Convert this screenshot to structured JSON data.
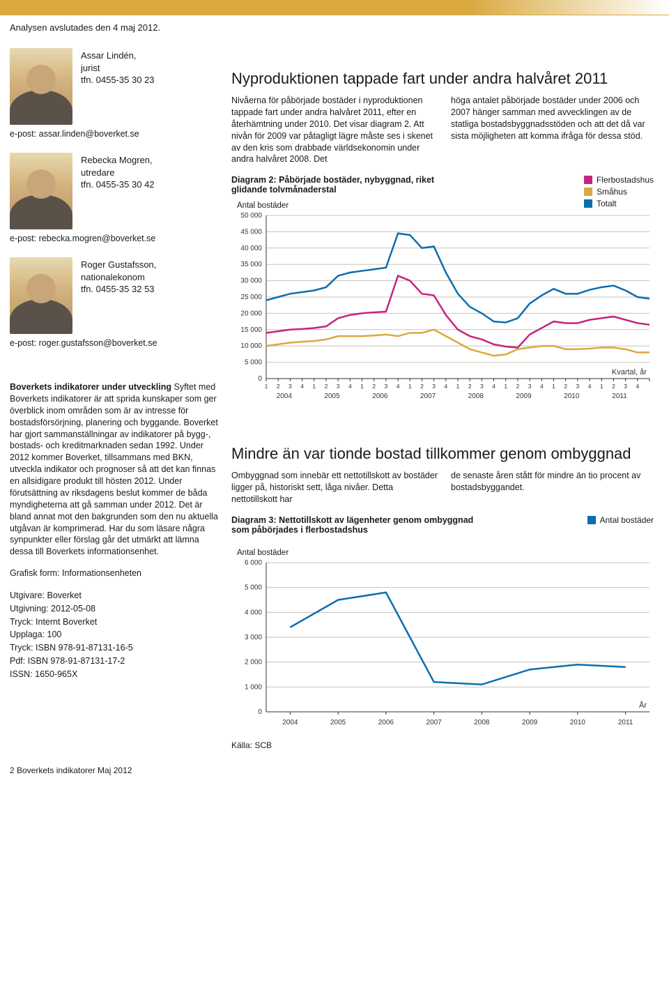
{
  "analysis_date": "Analysen avslutades den 4 maj 2012.",
  "persons": [
    {
      "name": "Assar Lindén,",
      "role": "jurist",
      "phone": "tfn. 0455-35 30 23",
      "email": "e-post: assar.linden@boverket.se"
    },
    {
      "name": "Rebecka Mogren,",
      "role": "utredare",
      "phone": "tfn. 0455-35 30 42",
      "email": "e-post: rebecka.mogren@boverket.se"
    },
    {
      "name": "Roger Gustafsson,",
      "role": "nationalekonom",
      "phone": "tfn. 0455-35 32 53",
      "email": "e-post: roger.gustafsson@boverket.se"
    }
  ],
  "sidebar": {
    "heading": "Boverkets indikatorer under utveckling",
    "body": "Syftet med Boverkets indikatorer är att sprida kunskaper som ger överblick inom områden som är av intresse för bostadsförsörjning, planering och byggande. Boverket har gjort sammanställningar av indikatorer på bygg-, bostads- och kreditmarknaden sedan 1992. Under 2012 kommer Boverket, tillsammans med BKN, utveckla indikator och prognoser så att det kan finnas en allsidigare produkt till hösten 2012. Under förutsättning av riksdagens beslut kommer de båda myndigheterna att gå samman under 2012. Det är bland annat mot den bakgrunden som den nu aktuella utgåvan är komprimerad. Har du som läsare några synpunkter eller förslag går det utmärkt att lämna dessa till Boverkets informationsenhet.",
    "grafisk": "Grafisk form: Informationsenheten",
    "meta": [
      "Utgivare: Boverket",
      "Utgivning: 2012-05-08",
      "Tryck: Internt Boverket",
      "Upplaga: 100",
      "Tryck: ISBN 978-91-87131-16-5",
      "Pdf: ISBN 978-91-87131-17-2",
      "ISSN: 1650-965X"
    ]
  },
  "section1": {
    "title": "Nyproduktionen tappade fart under andra halvåret 2011",
    "col1": "Nivåerna för påbörjade bostäder i nyproduktionen tappade fart under andra halvåret 2011, efter en återhämtning under 2010. Det visar diagram 2. Att nivån för 2009 var påtagligt lägre måste ses i skenet av den kris som drabbade världsekonomin under andra halvåret 2008. Det",
    "col2": "höga antalet påbörjade bostäder under 2006 och 2007 hänger samman med avvecklingen av de statliga bostadsbyggnadsstöden och att det då var sista möjligheten att komma ifråga för dessa stöd."
  },
  "chart1": {
    "title": "Diagram 2: Påbörjade bostäder, nybyggnad, riket glidande tolvmånaderstal",
    "ylabel": "Antal bostäder",
    "legend": [
      {
        "label": "Flerbostadshus",
        "color": "#c5247d"
      },
      {
        "label": "Småhus",
        "color": "#d9a93f"
      },
      {
        "label": "Totalt",
        "color": "#0a6eb0"
      }
    ],
    "ylim": [
      0,
      50000
    ],
    "ytick_step": 5000,
    "ylabels": [
      "0",
      "5 000",
      "10 000",
      "15 000",
      "20 000",
      "25 000",
      "30 000",
      "35 000",
      "40 000",
      "45 000",
      "50 000"
    ],
    "years": [
      2004,
      2005,
      2006,
      2007,
      2008,
      2009,
      2010,
      2011
    ],
    "quarters_per_year": 4,
    "xlabel_right": "Kvartal, år",
    "series": {
      "totalt": [
        24000,
        25000,
        26000,
        26500,
        27000,
        28000,
        31500,
        32500,
        33000,
        33500,
        34000,
        44500,
        44000,
        40000,
        40500,
        32500,
        26000,
        22000,
        20000,
        17500,
        17200,
        18500,
        23000,
        25500,
        27500,
        26000,
        26000,
        27200,
        28000,
        28500,
        27000,
        25000,
        24500
      ],
      "flerbostad": [
        14000,
        14500,
        15000,
        15200,
        15500,
        16000,
        18500,
        19500,
        20000,
        20300,
        20500,
        31500,
        30000,
        26000,
        25500,
        19500,
        15000,
        13000,
        12000,
        10500,
        9800,
        9500,
        13500,
        15500,
        17500,
        17000,
        17000,
        18000,
        18500,
        19000,
        18000,
        17000,
        16500
      ],
      "smahus": [
        10000,
        10500,
        11000,
        11300,
        11500,
        12000,
        13000,
        13000,
        13000,
        13200,
        13500,
        13000,
        14000,
        14000,
        15000,
        13000,
        11000,
        9000,
        8000,
        7000,
        7400,
        9000,
        9500,
        10000,
        10000,
        9000,
        9000,
        9200,
        9500,
        9500,
        9000,
        8000,
        8000
      ]
    },
    "colors": {
      "totalt": "#0a6eb0",
      "flerbostad": "#c5247d",
      "smahus": "#d9a93f"
    },
    "line_width": 2.5,
    "background": "#ffffff",
    "grid_color": "#c9c3b4"
  },
  "section2": {
    "title": "Mindre än var tionde bostad tillkommer genom ombyggnad",
    "col1": "Ombyggnad som innebär ett nettotillskott av bostäder ligger på, historiskt sett, låga nivåer. Detta nettotillskott har",
    "col2": "de senaste åren stått för mindre än tio procent av bostadsbyggandet."
  },
  "chart2": {
    "title": "Diagram 3: Nettotillskott av lägenheter genom ombyggnad som påbörjades i flerbostadshus",
    "ylabel": "Antal bostäder",
    "legend": [
      {
        "label": "Antal bostäder",
        "color": "#0a6eb0"
      }
    ],
    "ylim": [
      0,
      6000
    ],
    "ytick_step": 1000,
    "ylabels": [
      "0",
      "1 000",
      "2 000",
      "3 000",
      "4 000",
      "5 000",
      "6 000"
    ],
    "years": [
      2004,
      2005,
      2006,
      2007,
      2008,
      2009,
      2010,
      2011
    ],
    "xlabel_right": "År",
    "series": {
      "antal": [
        3400,
        4500,
        4800,
        1200,
        1100,
        1700,
        1900,
        1800
      ]
    },
    "color": "#0a6eb0",
    "line_width": 2.5,
    "source": "Källa: SCB"
  },
  "footer": "2  Boverkets indikatorer Maj 2012"
}
